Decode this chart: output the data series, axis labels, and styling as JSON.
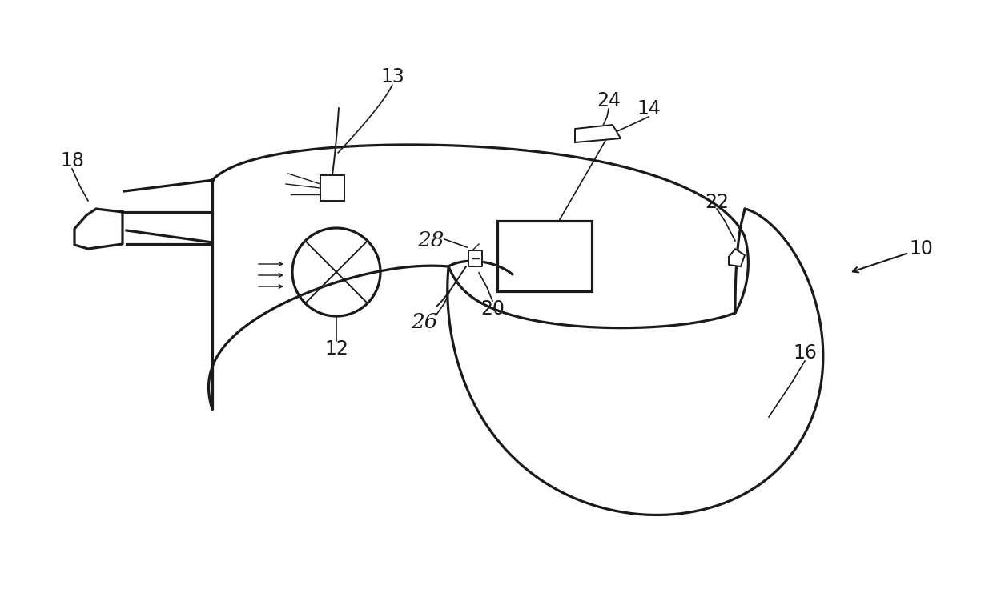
{
  "bg_color": "#ffffff",
  "line_color": "#1a1a1a",
  "label_color": "#1a1a1a",
  "figsize": [
    12.4,
    7.41
  ],
  "dpi": 100,
  "lw_main": 2.3,
  "lw_thin": 1.4,
  "lw_detail": 1.0
}
